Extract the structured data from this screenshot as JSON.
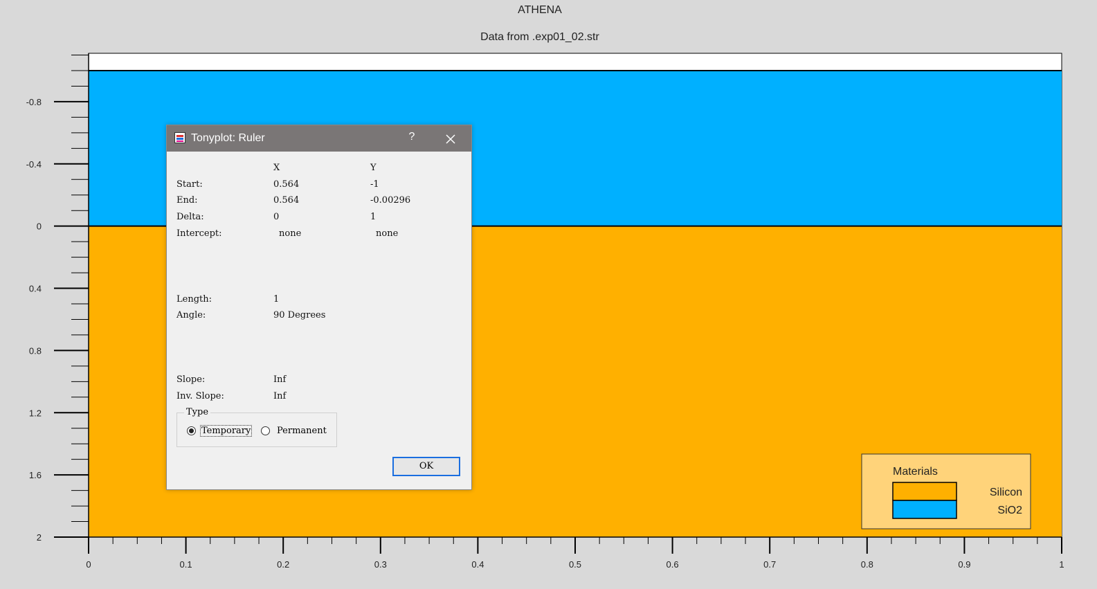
{
  "plot": {
    "title": "ATHENA",
    "subtitle": "Data from .exp01_02.str",
    "colors": {
      "silicon": "#ffb000",
      "sio2": "#00b0ff",
      "background": "#d9d9d9"
    }
  },
  "chart_data": {
    "type": "heatmap",
    "title": "ATHENA",
    "subtitle": "Data from .exp01_02.str",
    "xlim": [
      0,
      1
    ],
    "ylim": [
      2,
      -1
    ],
    "x_ticks": [
      "0",
      "0.1",
      "0.2",
      "0.3",
      "0.4",
      "0.5",
      "0.6",
      "0.7",
      "0.8",
      "0.9",
      "1"
    ],
    "y_ticks": [
      "-0.8",
      "-0.4",
      "0",
      "0.4",
      "0.8",
      "1.2",
      "1.6",
      "2"
    ],
    "regions": [
      {
        "material": "SiO2",
        "x": [
          0,
          1
        ],
        "y": [
          -1,
          0
        ],
        "color": "#00b0ff"
      },
      {
        "material": "Silicon",
        "x": [
          0,
          1
        ],
        "y": [
          0,
          2
        ],
        "color": "#ffb000"
      }
    ],
    "top_empty_band": {
      "y": [
        -1.1,
        -1
      ]
    },
    "legend": {
      "title": "Materials",
      "placement": "bottom-right",
      "entries": [
        {
          "name": "Silicon",
          "color": "#ffb000"
        },
        {
          "name": "SiO2",
          "color": "#00b0ff"
        }
      ]
    }
  },
  "dialog": {
    "title": "Tonyplot: Ruler",
    "help_label": "?",
    "col_x": "X",
    "col_y": "Y",
    "rows": [
      {
        "label": "Start:",
        "x": "0.564",
        "y": "-1"
      },
      {
        "label": "End:",
        "x": "0.564",
        "y": "-0.00296"
      },
      {
        "label": "Delta:",
        "x": "0",
        "y": "1"
      },
      {
        "label": "Intercept:",
        "x": "none",
        "y": "none"
      }
    ],
    "length_label": "Length:",
    "length_value": "1",
    "angle_label": "Angle:",
    "angle_value": "90 Degrees",
    "slope_label": "Slope:",
    "slope_value": "Inf",
    "inv_slope_label": "Inv. Slope:",
    "inv_slope_value": "Inf",
    "type_label": "Type",
    "type_options": [
      "Temporary",
      "Permanent"
    ],
    "type_selected": "Temporary",
    "ok_label": "OK"
  }
}
